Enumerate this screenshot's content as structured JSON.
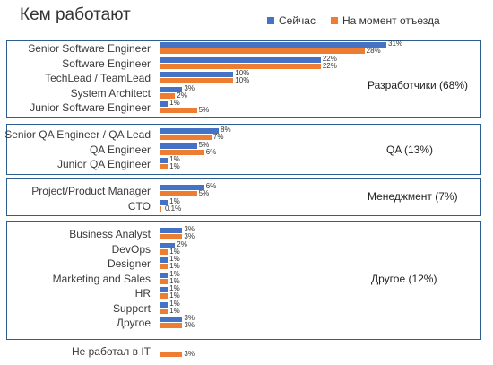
{
  "chart_data": {
    "type": "bar",
    "orientation": "horizontal",
    "title": "Кем работают",
    "legend_position": "top-right",
    "series": [
      {
        "name": "Сейчас",
        "color": "#4472c4"
      },
      {
        "name": "На момент отъезда",
        "color": "#ed7d31"
      }
    ],
    "groups": [
      {
        "label": "Разработчики (68%)",
        "rows": [
          {
            "category": "Senior Software Engineer",
            "now": 31,
            "then": 28,
            "now_label": "31%",
            "then_label": "28%"
          },
          {
            "category": "Software Engineer",
            "now": 22,
            "then": 22,
            "now_label": "22%",
            "then_label": "22%"
          },
          {
            "category": "TechLead / TeamLead",
            "now": 10,
            "then": 10,
            "now_label": "10%",
            "then_label": "10%"
          },
          {
            "category": "System Architect",
            "now": 3,
            "then": 2,
            "now_label": "3%",
            "then_label": "2%"
          },
          {
            "category": "Junior  Software Engineer",
            "now": 1,
            "then": 5,
            "now_label": "1%",
            "then_label": "5%"
          }
        ]
      },
      {
        "label": "QA (13%)",
        "rows": [
          {
            "category": "Senior QA Engineer / QA Lead",
            "now": 8,
            "then": 7,
            "now_label": "8%",
            "then_label": "7%"
          },
          {
            "category": "QA Engineer",
            "now": 5,
            "then": 6,
            "now_label": "5%",
            "then_label": "6%"
          },
          {
            "category": "Junior QA Engineer",
            "now": 1,
            "then": 1,
            "now_label": "1%",
            "then_label": "1%"
          }
        ]
      },
      {
        "label": "Менеджмент (7%)",
        "rows": [
          {
            "category": "Project/Product Manager",
            "now": 6,
            "then": 5,
            "now_label": "6%",
            "then_label": "5%"
          },
          {
            "category": "CTO",
            "now": 1,
            "then": 0.1,
            "now_label": "1%",
            "then_label": "0.1%"
          }
        ]
      },
      {
        "label": "Другое (12%)",
        "rows": [
          {
            "category": "Business Analyst",
            "now": 3,
            "then": 3,
            "now_label": "3%",
            "then_label": "3%"
          },
          {
            "category": "DevOps",
            "now": 2,
            "then": 1,
            "now_label": "2%",
            "then_label": "1%"
          },
          {
            "category": "Designer",
            "now": 1,
            "then": 1,
            "now_label": "1%",
            "then_label": "1%"
          },
          {
            "category": "Marketing and Sales",
            "now": 1,
            "then": 1,
            "now_label": "1%",
            "then_label": "1%"
          },
          {
            "category": "HR",
            "now": 1,
            "then": 1,
            "now_label": "1%",
            "then_label": "1%"
          },
          {
            "category": "Support",
            "now": 1,
            "then": 1,
            "now_label": "1%",
            "then_label": "1%"
          },
          {
            "category": "Другое",
            "now": 3,
            "then": 3,
            "now_label": "3%",
            "then_label": "3%"
          }
        ]
      },
      {
        "label": "",
        "rows": [
          {
            "category": "Не работал в IT",
            "now": null,
            "then": 3,
            "now_label": "",
            "then_label": "3%"
          }
        ]
      }
    ]
  }
}
